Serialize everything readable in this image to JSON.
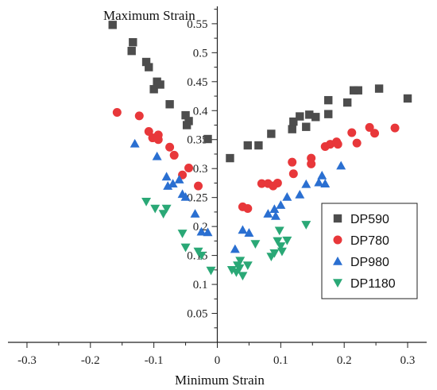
{
  "chart_data": {
    "type": "scatter",
    "xlabel": "Minimum Strain",
    "ylabel": "Maximum Strain",
    "xlim": [
      -0.33,
      0.33
    ],
    "ylim": [
      0,
      0.58
    ],
    "x_ticks": [
      -0.3,
      -0.2,
      -0.1,
      0,
      0.1,
      0.2,
      0.3
    ],
    "x_tick_labels": [
      "-0.3",
      "-0.2",
      "-0.1",
      "0",
      "0.1",
      "0.2",
      "0.3"
    ],
    "y_ticks": [
      0.05,
      0.1,
      0.15,
      0.2,
      0.25,
      0.3,
      0.35,
      0.4,
      0.45,
      0.5,
      0.55
    ],
    "y_tick_labels": [
      "0.05",
      "0.1",
      "0.15",
      "0.2",
      "0.25",
      "0.3",
      "0.35",
      "0.4",
      "0.45",
      "0.5",
      "0.55"
    ],
    "grid": false,
    "legend_position": "lower-right",
    "series": [
      {
        "name": "DP590",
        "marker": "square",
        "color": "#4d4d4d",
        "points": [
          [
            -0.165,
            0.548
          ],
          [
            -0.133,
            0.518
          ],
          [
            -0.135,
            0.503
          ],
          [
            -0.112,
            0.484
          ],
          [
            -0.108,
            0.475
          ],
          [
            -0.095,
            0.45
          ],
          [
            -0.1,
            0.437
          ],
          [
            -0.09,
            0.445
          ],
          [
            -0.075,
            0.411
          ],
          [
            -0.05,
            0.392
          ],
          [
            -0.045,
            0.382
          ],
          [
            -0.048,
            0.375
          ],
          [
            -0.015,
            0.351
          ],
          [
            0.02,
            0.318
          ],
          [
            0.048,
            0.34
          ],
          [
            0.065,
            0.34
          ],
          [
            0.085,
            0.36
          ],
          [
            0.118,
            0.368
          ],
          [
            0.12,
            0.381
          ],
          [
            0.13,
            0.39
          ],
          [
            0.14,
            0.372
          ],
          [
            0.145,
            0.393
          ],
          [
            0.155,
            0.389
          ],
          [
            0.175,
            0.394
          ],
          [
            0.175,
            0.418
          ],
          [
            0.205,
            0.414
          ],
          [
            0.215,
            0.435
          ],
          [
            0.222,
            0.435
          ],
          [
            0.255,
            0.438
          ],
          [
            0.3,
            0.421
          ]
        ]
      },
      {
        "name": "DP780",
        "marker": "circle",
        "color": "#e8373a",
        "points": [
          [
            -0.158,
            0.397
          ],
          [
            -0.123,
            0.391
          ],
          [
            -0.108,
            0.364
          ],
          [
            -0.102,
            0.353
          ],
          [
            -0.093,
            0.358
          ],
          [
            -0.093,
            0.35
          ],
          [
            -0.075,
            0.337
          ],
          [
            -0.068,
            0.323
          ],
          [
            -0.055,
            0.289
          ],
          [
            -0.045,
            0.301
          ],
          [
            -0.03,
            0.27
          ],
          [
            0.07,
            0.274
          ],
          [
            0.08,
            0.274
          ],
          [
            0.088,
            0.27
          ],
          [
            0.095,
            0.275
          ],
          [
            0.04,
            0.234
          ],
          [
            0.048,
            0.231
          ],
          [
            0.118,
            0.311
          ],
          [
            0.12,
            0.291
          ],
          [
            0.148,
            0.318
          ],
          [
            0.148,
            0.308
          ],
          [
            0.17,
            0.338
          ],
          [
            0.178,
            0.342
          ],
          [
            0.188,
            0.346
          ],
          [
            0.212,
            0.362
          ],
          [
            0.24,
            0.371
          ],
          [
            0.248,
            0.361
          ],
          [
            0.28,
            0.37
          ],
          [
            0.19,
            0.342
          ],
          [
            0.22,
            0.344
          ]
        ]
      },
      {
        "name": "DP980",
        "marker": "triangle-up",
        "color": "#2a6fd1",
        "points": [
          [
            -0.13,
            0.343
          ],
          [
            -0.095,
            0.321
          ],
          [
            -0.08,
            0.286
          ],
          [
            -0.07,
            0.274
          ],
          [
            -0.078,
            0.27
          ],
          [
            -0.06,
            0.281
          ],
          [
            -0.055,
            0.256
          ],
          [
            -0.05,
            0.251
          ],
          [
            -0.035,
            0.222
          ],
          [
            -0.025,
            0.191
          ],
          [
            -0.015,
            0.19
          ],
          [
            0.028,
            0.161
          ],
          [
            0.04,
            0.194
          ],
          [
            0.05,
            0.189
          ],
          [
            0.08,
            0.222
          ],
          [
            0.09,
            0.23
          ],
          [
            0.092,
            0.218
          ],
          [
            0.1,
            0.237
          ],
          [
            0.11,
            0.251
          ],
          [
            0.13,
            0.255
          ],
          [
            0.14,
            0.273
          ],
          [
            0.16,
            0.276
          ],
          [
            0.165,
            0.288
          ],
          [
            0.17,
            0.274
          ],
          [
            0.195,
            0.305
          ]
        ]
      },
      {
        "name": "DP1180",
        "marker": "triangle-down",
        "color": "#2aa876",
        "points": [
          [
            -0.112,
            0.243
          ],
          [
            -0.098,
            0.231
          ],
          [
            -0.085,
            0.222
          ],
          [
            -0.08,
            0.231
          ],
          [
            -0.055,
            0.188
          ],
          [
            -0.05,
            0.164
          ],
          [
            -0.03,
            0.157
          ],
          [
            -0.025,
            0.15
          ],
          [
            -0.01,
            0.124
          ],
          [
            0.023,
            0.125
          ],
          [
            0.03,
            0.121
          ],
          [
            0.035,
            0.128
          ],
          [
            0.04,
            0.115
          ],
          [
            0.048,
            0.133
          ],
          [
            0.06,
            0.17
          ],
          [
            0.085,
            0.148
          ],
          [
            0.09,
            0.154
          ],
          [
            0.095,
            0.175
          ],
          [
            0.1,
            0.166
          ],
          [
            0.102,
            0.157
          ],
          [
            0.11,
            0.176
          ],
          [
            0.14,
            0.203
          ],
          [
            0.036,
            0.141
          ],
          [
            0.032,
            0.133
          ],
          [
            0.098,
            0.193
          ]
        ]
      }
    ]
  }
}
